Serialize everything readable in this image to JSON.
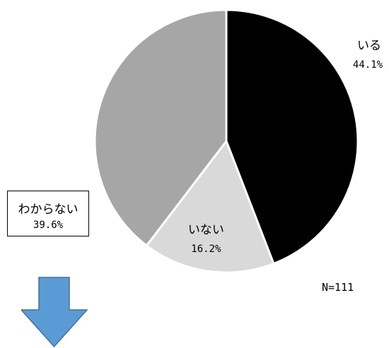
{
  "chart_data": {
    "type": "pie",
    "slices": [
      {
        "category": "いる",
        "value": 44.1,
        "value_label": "44.1%",
        "color": "#000000"
      },
      {
        "category": "いない",
        "value": 16.2,
        "value_label": "16.2%",
        "color": "#d9d9d9"
      },
      {
        "category": "わからない",
        "value": 39.6,
        "value_label": "39.6%",
        "color": "#a6a6a6"
      }
    ],
    "annotation": "N=111"
  },
  "arrow": {
    "color": "#5b9bd5",
    "icon": "down-arrow-icon"
  }
}
